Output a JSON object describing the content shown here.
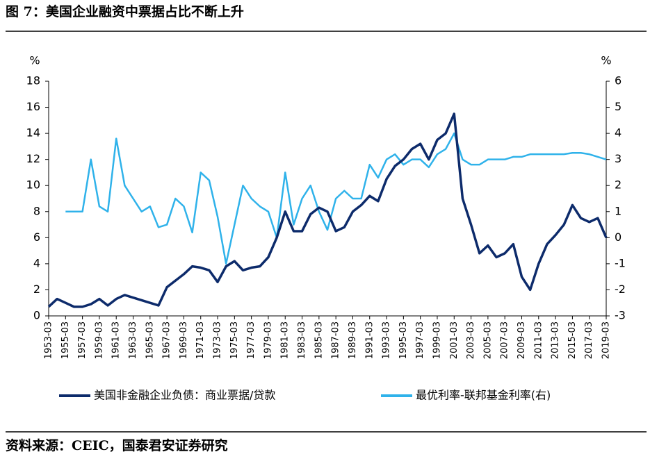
{
  "chart_data": {
    "type": "line",
    "title": "图 7：美国企业融资中票据占比不断上升",
    "y_label": "%",
    "y2_label": "%",
    "source": "资料来源：CEIC，国泰君安证券研究",
    "categories": [
      "1953-03",
      null,
      "1955-03",
      null,
      "1957-03",
      null,
      "1959-03",
      null,
      "1961-03",
      null,
      "1963-03",
      null,
      "1965-03",
      null,
      "1967-03",
      null,
      "1969-03",
      null,
      "1971-03",
      null,
      "1973-03",
      null,
      "1975-03",
      null,
      "1977-03",
      null,
      "1979-03",
      null,
      "1981-03",
      null,
      "1983-03",
      null,
      "1985-03",
      null,
      "1987-03",
      null,
      "1989-03",
      null,
      "1991-03",
      null,
      "1993-03",
      null,
      "1995-03",
      null,
      "1997-03",
      null,
      "1999-03",
      null,
      "2001-03",
      null,
      "2003-03",
      null,
      "2005-03",
      null,
      "2007-03",
      null,
      "2009-03",
      null,
      "2011-03",
      null,
      "2013-03",
      null,
      "2015-03",
      null,
      "2017-03",
      null,
      "2019-03"
    ],
    "series": [
      {
        "name": "美国非金融企业负债：商业票据/贷款",
        "color": "#0d2b6b",
        "values": [
          0.7,
          1.3,
          1.0,
          0.7,
          0.7,
          0.9,
          1.3,
          0.8,
          1.3,
          1.6,
          1.4,
          1.2,
          1.0,
          0.8,
          2.2,
          2.7,
          3.2,
          3.8,
          3.7,
          3.5,
          2.6,
          3.8,
          4.2,
          3.5,
          3.7,
          3.8,
          4.5,
          6.0,
          8.0,
          6.5,
          6.5,
          7.8,
          8.3,
          8.0,
          6.5,
          6.8,
          8.0,
          8.5,
          9.2,
          8.8,
          10.5,
          11.5,
          12.0,
          12.8,
          13.2,
          12.0,
          13.5,
          14.0,
          15.5,
          9.0,
          7.0,
          4.8,
          5.4,
          4.5,
          4.8,
          5.5,
          3.0,
          2.0,
          4.0,
          5.5,
          6.2,
          7.0,
          8.5,
          7.5,
          7.2,
          7.5,
          6.0
        ]
      },
      {
        "name": "最优利率-联邦基金利率(右)",
        "color": "#2fb2ea",
        "axis": "y2",
        "values": [
          null,
          null,
          1.0,
          1.0,
          1.0,
          3.0,
          1.2,
          1.0,
          3.8,
          2.0,
          1.5,
          1.0,
          1.2,
          0.4,
          0.5,
          1.5,
          1.2,
          0.2,
          2.5,
          2.2,
          0.8,
          -1.0,
          0.5,
          2.0,
          1.5,
          1.2,
          1.0,
          0.0,
          2.5,
          0.5,
          1.5,
          2.0,
          1.0,
          0.3,
          1.5,
          1.8,
          1.5,
          1.5,
          2.8,
          2.3,
          3.0,
          3.2,
          2.8,
          3.0,
          3.0,
          2.7,
          3.2,
          3.4,
          4.0,
          3.0,
          2.8,
          2.8,
          3.0,
          3.0,
          3.0,
          3.1,
          3.1,
          3.2,
          3.2,
          3.2,
          3.2,
          3.2,
          3.25,
          3.25,
          3.2,
          3.1,
          3.0
        ]
      }
    ],
    "ylim": [
      0,
      18
    ],
    "yticks": [
      0,
      2,
      4,
      6,
      8,
      10,
      12,
      14,
      16,
      18
    ],
    "y2lim": [
      -3,
      6
    ],
    "y2ticks": [
      -3,
      -2,
      -1,
      0,
      1,
      2,
      3,
      4,
      5,
      6
    ]
  }
}
